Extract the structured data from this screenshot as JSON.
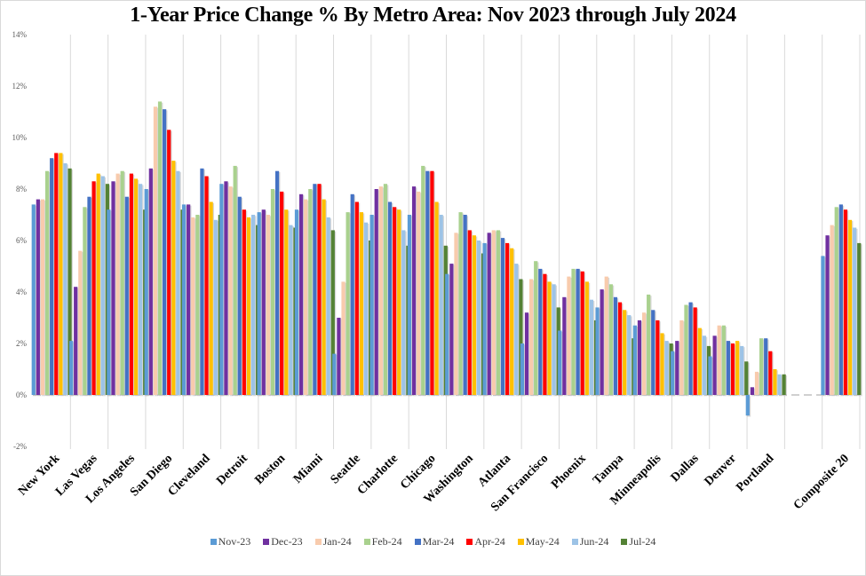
{
  "chart_data": {
    "type": "bar",
    "title": "1-Year Price Change % By Metro Area: Nov 2023 through July 2024",
    "xlabel": "",
    "ylabel": "",
    "ylim": [
      -2,
      14
    ],
    "yticks": [
      -2,
      0,
      2,
      4,
      6,
      8,
      10,
      12,
      14
    ],
    "ytick_labels": [
      "-2%",
      "0%",
      "2%",
      "4%",
      "6%",
      "8%",
      "10%",
      "12%",
      "14%"
    ],
    "grid": "vertical category separators",
    "legend_position": "bottom",
    "categories": [
      "New York",
      "Las Vegas",
      "Los Angeles",
      "San Diego",
      "Cleveland",
      "Detroit",
      "Boston",
      "Miami",
      "Seattle",
      "Charlotte",
      "Chicago",
      "Washington",
      "Atlanta",
      "San Francisco",
      "Phoenix",
      "Tampa",
      "Minneapolis",
      "Dallas",
      "Denver",
      "Portland",
      "",
      "Composite 20"
    ],
    "series": [
      {
        "name": "Nov-23",
        "color": "#5b9bd5",
        "values": [
          7.4,
          2.1,
          7.2,
          8.0,
          7.4,
          8.2,
          7.1,
          7.2,
          1.6,
          7.0,
          7.0,
          4.7,
          5.9,
          2.0,
          2.5,
          3.4,
          2.7,
          1.7,
          1.5,
          -0.8,
          null,
          5.4
        ]
      },
      {
        "name": "Dec-23",
        "color": "#7030a0",
        "values": [
          7.6,
          4.2,
          8.3,
          8.8,
          7.4,
          8.3,
          7.2,
          7.8,
          3.0,
          8.0,
          8.1,
          5.1,
          6.3,
          3.2,
          3.8,
          4.1,
          2.9,
          2.1,
          2.3,
          0.3,
          null,
          6.2
        ]
      },
      {
        "name": "Jan-24",
        "color": "#f8cbad",
        "values": [
          7.6,
          5.6,
          8.6,
          11.2,
          6.9,
          8.1,
          7.0,
          7.6,
          4.4,
          8.1,
          7.9,
          6.3,
          6.4,
          4.5,
          4.6,
          4.6,
          3.2,
          2.9,
          2.7,
          0.9,
          null,
          6.6
        ]
      },
      {
        "name": "Feb-24",
        "color": "#a9d18e",
        "values": [
          8.7,
          7.3,
          8.7,
          11.4,
          7.0,
          8.9,
          8.0,
          8.0,
          7.1,
          8.2,
          8.9,
          7.1,
          6.4,
          5.2,
          4.9,
          4.3,
          3.9,
          3.5,
          2.7,
          2.2,
          null,
          7.3
        ]
      },
      {
        "name": "Mar-24",
        "color": "#4472c4",
        "values": [
          9.2,
          7.7,
          7.7,
          11.1,
          8.8,
          7.7,
          8.7,
          8.2,
          7.8,
          7.5,
          8.7,
          7.0,
          6.1,
          4.9,
          4.9,
          3.8,
          3.3,
          3.6,
          2.1,
          2.2,
          null,
          7.4
        ]
      },
      {
        "name": "Apr-24",
        "color": "#ff0000",
        "values": [
          9.4,
          8.3,
          8.6,
          10.3,
          8.5,
          7.2,
          7.9,
          8.2,
          7.5,
          7.3,
          8.7,
          6.4,
          5.9,
          4.7,
          4.8,
          3.6,
          2.9,
          3.4,
          2.0,
          1.7,
          null,
          7.2
        ]
      },
      {
        "name": "May-24",
        "color": "#ffc000",
        "values": [
          9.4,
          8.6,
          8.4,
          9.1,
          7.5,
          6.9,
          7.2,
          7.6,
          7.1,
          7.2,
          7.5,
          6.2,
          5.7,
          4.4,
          4.4,
          3.3,
          2.4,
          2.6,
          2.1,
          1.0,
          null,
          6.8
        ]
      },
      {
        "name": "Jun-24",
        "color": "#9dc3e6",
        "values": [
          9.0,
          8.5,
          8.2,
          8.7,
          6.8,
          7.0,
          6.6,
          6.9,
          6.7,
          6.4,
          7.0,
          6.0,
          5.1,
          4.3,
          3.7,
          3.1,
          2.1,
          2.3,
          1.9,
          0.8,
          null,
          6.5
        ]
      },
      {
        "name": "Jul-24",
        "color": "#548235",
        "values": [
          8.8,
          8.2,
          7.2,
          7.2,
          7.0,
          6.6,
          6.5,
          6.4,
          6.0,
          5.8,
          5.8,
          5.5,
          4.5,
          3.4,
          2.9,
          2.2,
          2.0,
          1.9,
          1.3,
          0.8,
          null,
          5.9
        ]
      }
    ]
  }
}
